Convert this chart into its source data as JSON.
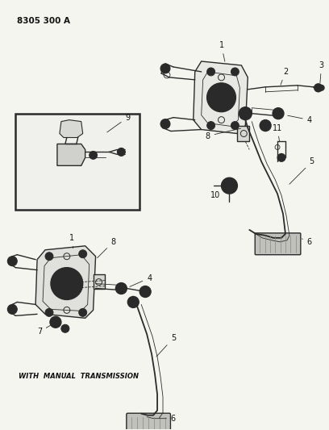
{
  "title_code": "8305 300 A",
  "bg_color": "#f5f5f0",
  "line_color": "#2a2a2a",
  "text_color": "#111111",
  "fig_width": 4.08,
  "fig_height": 5.33,
  "dpi": 100,
  "with_manual_text": "WITH  MANUAL  TRANSMISSION"
}
